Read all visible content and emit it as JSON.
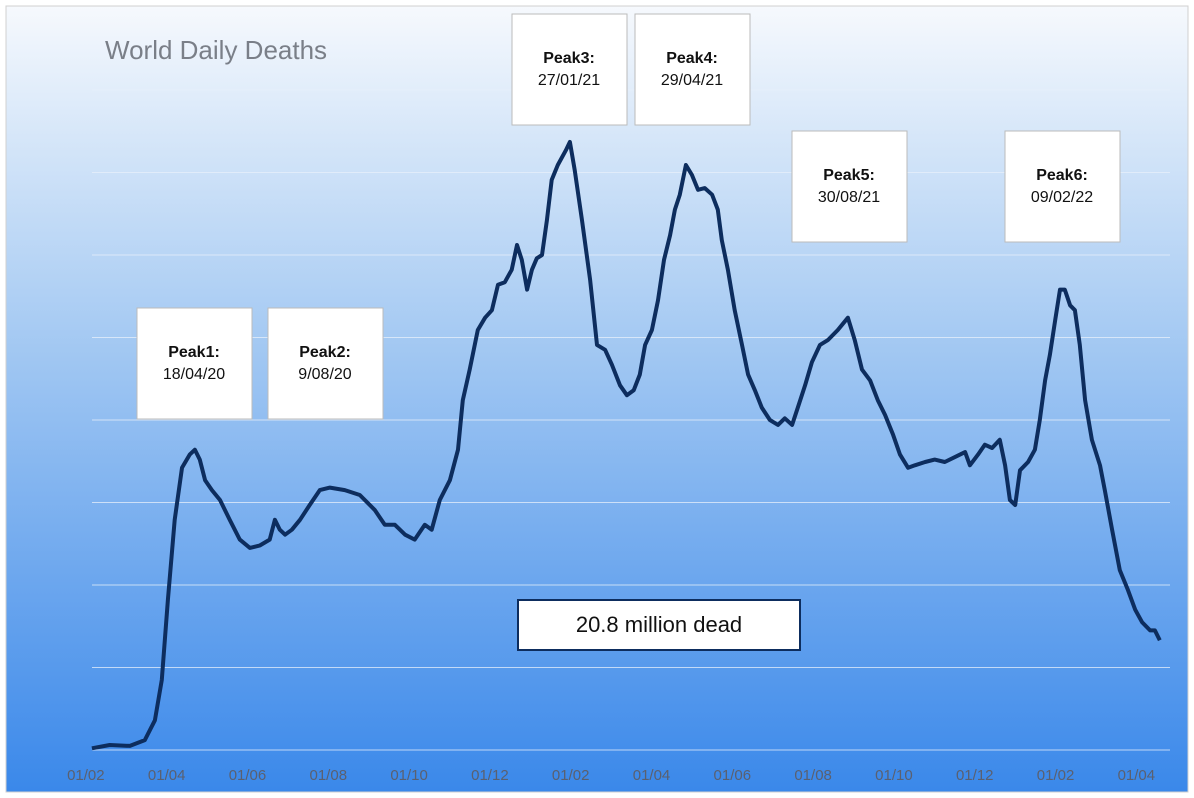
{
  "chart_data": {
    "type": "line",
    "title": "World Daily Deaths",
    "x": [
      0.15,
      0.59,
      1.09,
      1.46,
      1.71,
      1.88,
      2.03,
      2.2,
      2.38,
      2.57,
      2.7,
      2.82,
      2.95,
      3.12,
      3.32,
      3.56,
      3.81,
      4.06,
      4.31,
      4.55,
      4.68,
      4.8,
      4.93,
      5.1,
      5.3,
      5.54,
      5.79,
      6.04,
      6.41,
      6.78,
      7.15,
      7.4,
      7.65,
      7.9,
      8.14,
      8.39,
      8.56,
      8.76,
      9.01,
      9.21,
      9.33,
      9.5,
      9.7,
      9.88,
      10.05,
      10.2,
      10.37,
      10.54,
      10.67,
      10.79,
      10.92,
      11.04,
      11.16,
      11.29,
      11.41,
      11.53,
      11.68,
      11.88,
      11.98,
      12.1,
      12.28,
      12.48,
      12.65,
      12.85,
      13.02,
      13.22,
      13.39,
      13.56,
      13.71,
      13.84,
      14.01,
      14.16,
      14.31,
      14.46,
      14.58,
      14.7,
      14.85,
      15.0,
      15.15,
      15.32,
      15.5,
      15.64,
      15.74,
      15.89,
      16.06,
      16.24,
      16.39,
      16.56,
      16.73,
      16.93,
      17.13,
      17.3,
      17.48,
      17.62,
      17.8,
      17.97,
      18.17,
      18.37,
      18.61,
      18.86,
      19.03,
      19.21,
      19.41,
      19.6,
      19.78,
      19.98,
      20.15,
      20.35,
      20.52,
      20.77,
      21.01,
      21.26,
      21.51,
      21.76,
      21.88,
      22.08,
      22.25,
      22.43,
      22.62,
      22.75,
      22.87,
      23.0,
      23.12,
      23.32,
      23.49,
      23.61,
      23.74,
      23.86,
      23.99,
      24.11,
      24.23,
      24.36,
      24.48,
      24.6,
      24.73,
      24.9,
      25.1,
      25.22,
      25.4,
      25.59,
      25.79,
      25.97,
      26.14,
      26.34,
      26.46,
      26.58
    ],
    "series": [
      {
        "color": "#0d2d5e",
        "values": [
          0.02,
          0.06,
          0.05,
          0.12,
          0.36,
          0.85,
          1.82,
          2.79,
          3.42,
          3.58,
          3.64,
          3.52,
          3.27,
          3.15,
          3.03,
          2.79,
          2.55,
          2.45,
          2.48,
          2.55,
          2.79,
          2.67,
          2.61,
          2.67,
          2.79,
          2.97,
          3.15,
          3.18,
          3.15,
          3.09,
          2.91,
          2.73,
          2.73,
          2.61,
          2.55,
          2.73,
          2.67,
          3.03,
          3.27,
          3.64,
          4.24,
          4.61,
          5.09,
          5.24,
          5.33,
          5.64,
          5.67,
          5.82,
          6.12,
          5.94,
          5.58,
          5.82,
          5.96,
          6.0,
          6.42,
          6.91,
          7.09,
          7.27,
          7.37,
          7.03,
          6.42,
          5.7,
          4.91,
          4.85,
          4.67,
          4.42,
          4.3,
          4.36,
          4.55,
          4.91,
          5.09,
          5.45,
          5.94,
          6.24,
          6.55,
          6.73,
          7.09,
          6.97,
          6.79,
          6.81,
          6.73,
          6.55,
          6.18,
          5.82,
          5.33,
          4.91,
          4.55,
          4.36,
          4.15,
          4.0,
          3.94,
          4.02,
          3.94,
          4.15,
          4.42,
          4.7,
          4.91,
          4.97,
          5.09,
          5.24,
          4.97,
          4.61,
          4.48,
          4.24,
          4.06,
          3.82,
          3.58,
          3.42,
          3.45,
          3.49,
          3.52,
          3.49,
          3.55,
          3.61,
          3.45,
          3.58,
          3.7,
          3.66,
          3.76,
          3.45,
          3.03,
          2.97,
          3.39,
          3.49,
          3.64,
          4.0,
          4.48,
          4.79,
          5.21,
          5.58,
          5.58,
          5.39,
          5.33,
          4.91,
          4.24,
          3.76,
          3.45,
          3.15,
          2.67,
          2.18,
          1.94,
          1.7,
          1.55,
          1.45,
          1.45,
          1.33
        ]
      }
    ],
    "xlim": [
      -0.64,
      27.08
    ],
    "xticks": [
      {
        "value": 0,
        "label": "01/02"
      },
      {
        "value": 2,
        "label": "01/04"
      },
      {
        "value": 4,
        "label": "01/06"
      },
      {
        "value": 6,
        "label": "01/08"
      },
      {
        "value": 8,
        "label": "01/10"
      },
      {
        "value": 10,
        "label": "01/12"
      },
      {
        "value": 12,
        "label": "01/02"
      },
      {
        "value": 14,
        "label": "01/04"
      },
      {
        "value": 16,
        "label": "01/06"
      },
      {
        "value": 18,
        "label": "01/08"
      },
      {
        "value": 20,
        "label": "01/10"
      },
      {
        "value": 22,
        "label": "01/12"
      },
      {
        "value": 24,
        "label": "01/02"
      },
      {
        "value": 26,
        "label": "01/04"
      }
    ],
    "ylim": [
      0,
      9.09
    ],
    "gridlines": [
      0,
      1,
      2,
      3,
      4,
      5,
      6,
      7,
      8
    ],
    "annotations": [
      {
        "label": "Peak1:",
        "date": "18/04/20"
      },
      {
        "label": "Peak2:",
        "date": "9/08/20"
      },
      {
        "label": "Peak3:",
        "date": "27/01/21"
      },
      {
        "label": "Peak4:",
        "date": "29/04/21"
      },
      {
        "label": "Peak5:",
        "date": "30/08/21"
      },
      {
        "label": "Peak6:",
        "date": "09/02/22"
      }
    ],
    "total_note": "20.8 million dead"
  }
}
